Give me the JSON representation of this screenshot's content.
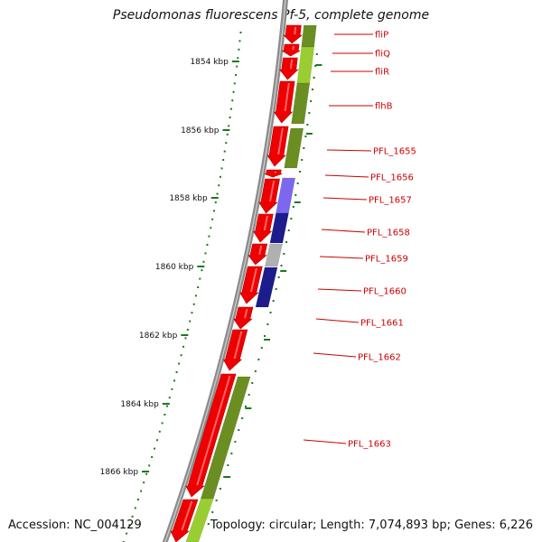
{
  "title": "Pseudomonas fluorescens Pf-5, complete genome",
  "footer": {
    "accession": "Accession: NC_004129",
    "stats": "Topology: circular; Length: 7,074,893 bp; Genes: 6,226"
  },
  "colors": {
    "backbone": "#8c8c8c",
    "gene_forward": "#ee0000",
    "tick": "#1a7a1a",
    "label": "#cc0000",
    "cog_green": "#6b8e23",
    "cog_light_green": "#9acd32",
    "cog_purple": "#7b68ee",
    "cog_navy": "#1c1c8c",
    "cog_gray": "#b0b0b0"
  },
  "scale_labels": [
    "1854 kbp",
    "1856 kbp",
    "1858 kbp",
    "1860 kbp",
    "1862 kbp",
    "1864 kbp",
    "1866 kbp"
  ],
  "gene_labels": [
    "fliP",
    "fliQ",
    "fliR",
    "flhB",
    "PFL_1655",
    "PFL_1656",
    "PFL_1657",
    "PFL_1658",
    "PFL_1659",
    "PFL_1660",
    "PFL_1661",
    "PFL_1662",
    "PFL_1663"
  ]
}
